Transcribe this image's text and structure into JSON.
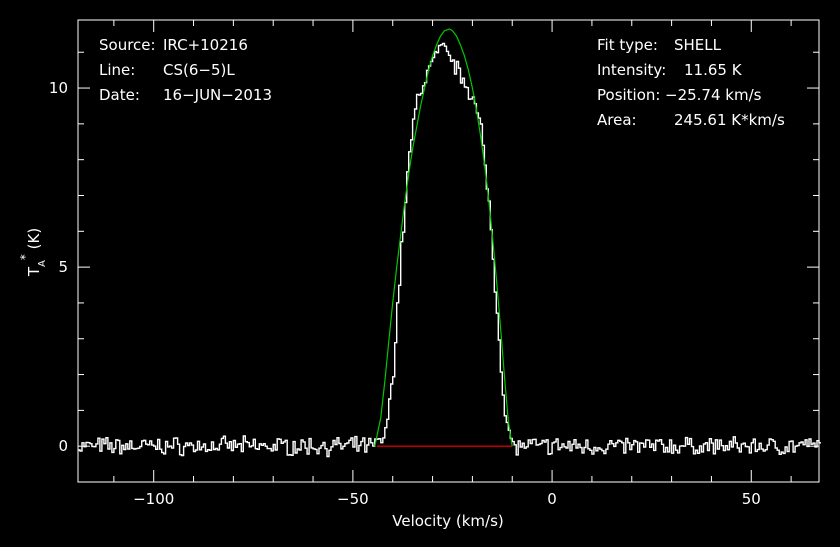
{
  "header_left": {
    "source_label": "Source:",
    "source_value": "IRC+10216",
    "line_label": "Line:",
    "line_value": "CS(6−5)L",
    "date_label": "Date:",
    "date_value": "16−JUN−2013"
  },
  "header_right": {
    "fit_label": "Fit type:",
    "fit_value": "SHELL",
    "intensity_label": "Intensity:",
    "intensity_value": "11.65 K",
    "position_label": "Position:",
    "position_value": "−25.74 km/s",
    "area_label": "Area:",
    "area_value": "245.61 K*km/s"
  },
  "colors": {
    "spectrum": "#ffffff",
    "fit": "#00c800",
    "baseline": "#ff0000",
    "axes": "#ffffff"
  },
  "chart_data": {
    "type": "line",
    "xlabel": "Velocity (km/s)",
    "ylabel": "T*A (K)",
    "xlim": [
      -119,
      67
    ],
    "ylim": [
      -1.0,
      11.9
    ],
    "x_ticks": [
      {
        "value": -100,
        "label": "−100"
      },
      {
        "value": -50,
        "label": "−50"
      },
      {
        "value": 0,
        "label": "0"
      },
      {
        "value": 50,
        "label": "50"
      }
    ],
    "y_ticks": [
      {
        "value": 0,
        "label": "0"
      },
      {
        "value": 5,
        "label": "5"
      },
      {
        "value": 10,
        "label": "10"
      }
    ],
    "series": [
      {
        "key": "spectrum",
        "x": [
          -119,
          -100,
          -80,
          -60,
          -45,
          -42,
          -40,
          -38,
          -36,
          -34,
          -32,
          -30,
          -28,
          -26,
          -24,
          -22,
          -20,
          -18,
          -16,
          -14,
          -12,
          -10,
          0,
          20,
          40,
          60,
          67
        ],
        "y": [
          0,
          0,
          0,
          0,
          0,
          0.3,
          2.2,
          5.5,
          8.2,
          9.7,
          10.3,
          10.8,
          11.1,
          10.9,
          10.5,
          10.2,
          9.7,
          8.8,
          6.8,
          3.8,
          0.8,
          0,
          0,
          0,
          0,
          0,
          0
        ]
      },
      {
        "key": "fit",
        "x": [
          -44.5,
          -43,
          -42,
          -41,
          -40,
          -39,
          -38,
          -37,
          -36,
          -35,
          -34,
          -33,
          -32,
          -31,
          -30,
          -29,
          -28,
          -27,
          -26,
          -25.74,
          -25,
          -24,
          -23,
          -22,
          -21,
          -20,
          -19,
          -18,
          -17,
          -16,
          -15,
          -14,
          -13,
          -12,
          -11,
          -10
        ],
        "y": [
          0,
          0.8,
          1.8,
          2.9,
          4.0,
          5.0,
          5.9,
          6.8,
          7.6,
          8.3,
          8.9,
          9.5,
          10.0,
          10.5,
          10.9,
          11.2,
          11.45,
          11.6,
          11.64,
          11.65,
          11.6,
          11.45,
          11.2,
          10.9,
          10.5,
          10.0,
          9.4,
          8.7,
          7.9,
          7.0,
          5.9,
          4.7,
          3.4,
          2.0,
          0.7,
          0
        ]
      },
      {
        "key": "baseline",
        "x": [
          -44,
          -10
        ],
        "y": [
          0,
          0
        ]
      }
    ]
  }
}
